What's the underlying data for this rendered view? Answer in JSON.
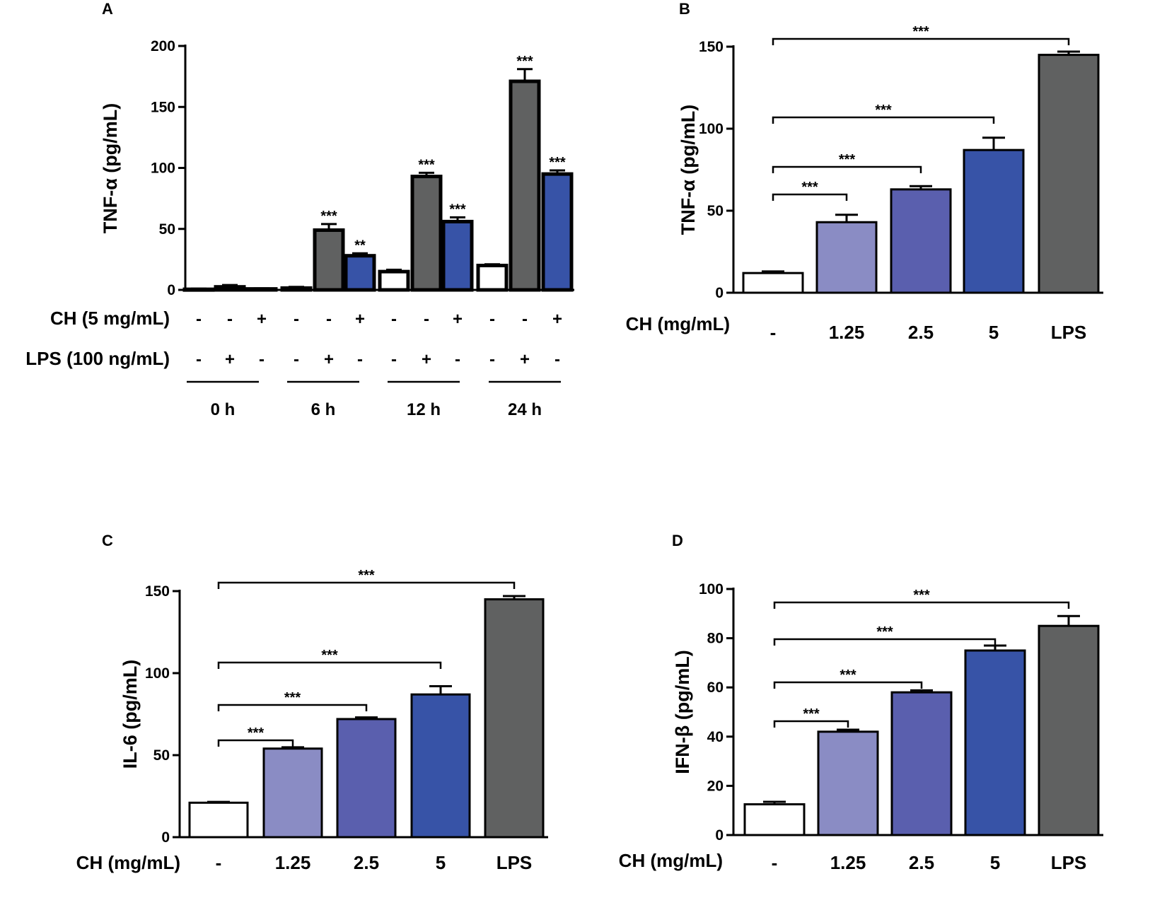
{
  "colors": {
    "control": "#ffffff",
    "lps": "#606161",
    "ch": "#3753a7",
    "ch_1_25": "#8a8cc4",
    "ch_2_5": "#5a5fae",
    "ch_5": "#3753a7"
  },
  "chart_data": [
    {
      "panel": "A",
      "type": "bar",
      "ylabel": "TNF-α (pg/mL)",
      "ylim": [
        0,
        200
      ],
      "yticks": [
        "0",
        "50",
        "100",
        "150",
        "200"
      ],
      "row_labels": [
        "CH (5 mg/mL)",
        "LPS (100 ng/mL)"
      ],
      "groups": [
        {
          "label": "0 h",
          "bars": [
            {
              "ch": "-",
              "lps": "-",
              "color_key": "control",
              "value": 0.5,
              "err": 0.5,
              "sig": ""
            },
            {
              "ch": "-",
              "lps": "+",
              "color_key": "lps",
              "value": 2.5,
              "err": 1.5,
              "sig": ""
            },
            {
              "ch": "+",
              "lps": "-",
              "color_key": "ch",
              "value": 0.8,
              "err": 0.4,
              "sig": ""
            }
          ]
        },
        {
          "label": "6 h",
          "bars": [
            {
              "ch": "-",
              "lps": "-",
              "color_key": "control",
              "value": 1.5,
              "err": 1.0,
              "sig": ""
            },
            {
              "ch": "-",
              "lps": "+",
              "color_key": "lps",
              "value": 49,
              "err": 5,
              "sig": "***"
            },
            {
              "ch": "+",
              "lps": "-",
              "color_key": "ch",
              "value": 28,
              "err": 2,
              "sig": "**"
            }
          ]
        },
        {
          "label": "12 h",
          "bars": [
            {
              "ch": "-",
              "lps": "-",
              "color_key": "control",
              "value": 15,
              "err": 1.5,
              "sig": ""
            },
            {
              "ch": "-",
              "lps": "+",
              "color_key": "lps",
              "value": 93,
              "err": 3,
              "sig": "***"
            },
            {
              "ch": "+",
              "lps": "-",
              "color_key": "ch",
              "value": 56,
              "err": 3.5,
              "sig": "***"
            }
          ]
        },
        {
          "label": "24 h",
          "bars": [
            {
              "ch": "-",
              "lps": "-",
              "color_key": "control",
              "value": 20,
              "err": 1,
              "sig": ""
            },
            {
              "ch": "-",
              "lps": "+",
              "color_key": "lps",
              "value": 171,
              "err": 10,
              "sig": "***"
            },
            {
              "ch": "+",
              "lps": "-",
              "color_key": "ch",
              "value": 95,
              "err": 3,
              "sig": "***"
            }
          ]
        }
      ]
    },
    {
      "panel": "B",
      "type": "bar",
      "ylabel": "TNF-α (pg/mL)",
      "xlabel": "CH (mg/mL)",
      "ylim": [
        0,
        150
      ],
      "yticks": [
        "0",
        "50",
        "100",
        "150"
      ],
      "categories": [
        "-",
        "1.25",
        "2.5",
        "5",
        "LPS"
      ],
      "color_keys": [
        "control",
        "ch_1_25",
        "ch_2_5",
        "ch_5",
        "lps"
      ],
      "values": [
        12,
        43,
        63,
        87,
        145
      ],
      "errors": [
        1,
        4.5,
        2,
        7.5,
        2
      ],
      "comparisons": [
        {
          "from": 0,
          "to": 1,
          "label": "***"
        },
        {
          "from": 0,
          "to": 2,
          "label": "***"
        },
        {
          "from": 0,
          "to": 3,
          "label": "***"
        },
        {
          "from": 0,
          "to": 4,
          "label": "***"
        }
      ]
    },
    {
      "panel": "C",
      "type": "bar",
      "ylabel": "IL-6 (pg/mL)",
      "xlabel": "CH (mg/mL)",
      "ylim": [
        0,
        150
      ],
      "yticks": [
        "0",
        "50",
        "100",
        "150"
      ],
      "categories": [
        "-",
        "1.25",
        "2.5",
        "5",
        "LPS"
      ],
      "color_keys": [
        "control",
        "ch_1_25",
        "ch_2_5",
        "ch_5",
        "lps"
      ],
      "values": [
        21,
        54,
        72,
        87,
        145
      ],
      "errors": [
        0.5,
        0.8,
        1,
        5,
        2
      ],
      "comparisons": [
        {
          "from": 0,
          "to": 1,
          "label": "***"
        },
        {
          "from": 0,
          "to": 2,
          "label": "***"
        },
        {
          "from": 0,
          "to": 3,
          "label": "***"
        },
        {
          "from": 0,
          "to": 4,
          "label": "***"
        }
      ]
    },
    {
      "panel": "D",
      "type": "bar",
      "ylabel": "IFN-β (pg/mL)",
      "xlabel": "CH (mg/mL)",
      "ylim": [
        0,
        100
      ],
      "yticks": [
        "0",
        "20",
        "40",
        "60",
        "80",
        "100"
      ],
      "categories": [
        "-",
        "1.25",
        "2.5",
        "5",
        "LPS"
      ],
      "color_keys": [
        "control",
        "ch_1_25",
        "ch_2_5",
        "ch_5",
        "lps"
      ],
      "values": [
        12.5,
        42,
        58,
        75,
        85
      ],
      "errors": [
        1,
        0.8,
        0.8,
        2,
        4
      ],
      "comparisons": [
        {
          "from": 0,
          "to": 1,
          "label": "***"
        },
        {
          "from": 0,
          "to": 2,
          "label": "***"
        },
        {
          "from": 0,
          "to": 3,
          "label": "***"
        },
        {
          "from": 0,
          "to": 4,
          "label": "***"
        }
      ]
    }
  ]
}
